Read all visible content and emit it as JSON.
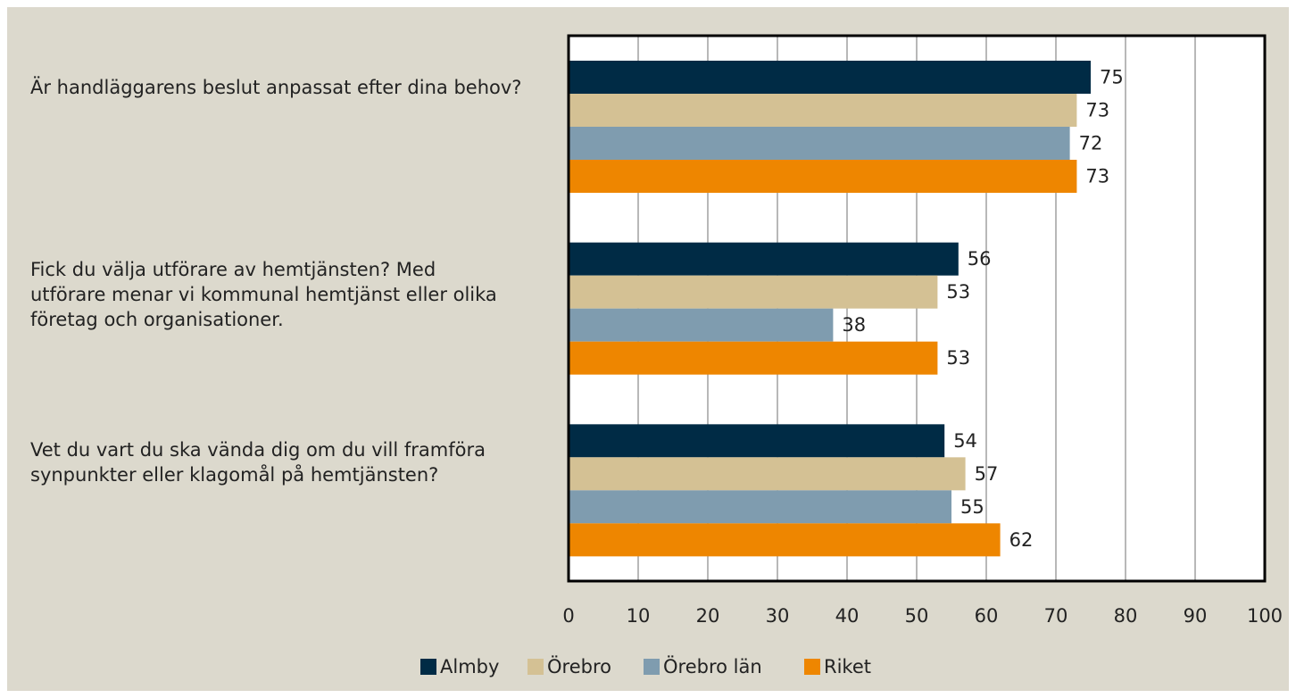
{
  "chart_data": {
    "type": "bar",
    "orientation": "horizontal",
    "categories": [
      "Är handläggarens beslut anpassat efter dina behov?",
      "Fick du välja utförare av hemtjänsten? Med utförare menar vi kommunal hemtjänst eller olika företag och organisationer.",
      "Vet du vart du ska vända dig om du vill framföra synpunkter eller klagomål på hemtjänsten?"
    ],
    "series": [
      {
        "name": "Almby",
        "color": "#002b45",
        "values": [
          75,
          56,
          54
        ]
      },
      {
        "name": "Örebro",
        "color": "#d4c194",
        "values": [
          73,
          53,
          57
        ]
      },
      {
        "name": "Örebro län",
        "color": "#7f9caf",
        "values": [
          72,
          38,
          55
        ]
      },
      {
        "name": "Riket",
        "color": "#ee8600",
        "values": [
          73,
          53,
          62
        ]
      }
    ],
    "xlim": [
      0,
      100
    ],
    "xticks": [
      0,
      10,
      20,
      30,
      40,
      50,
      60,
      70,
      80,
      90,
      100
    ],
    "grid": true,
    "legend": "bottom"
  }
}
